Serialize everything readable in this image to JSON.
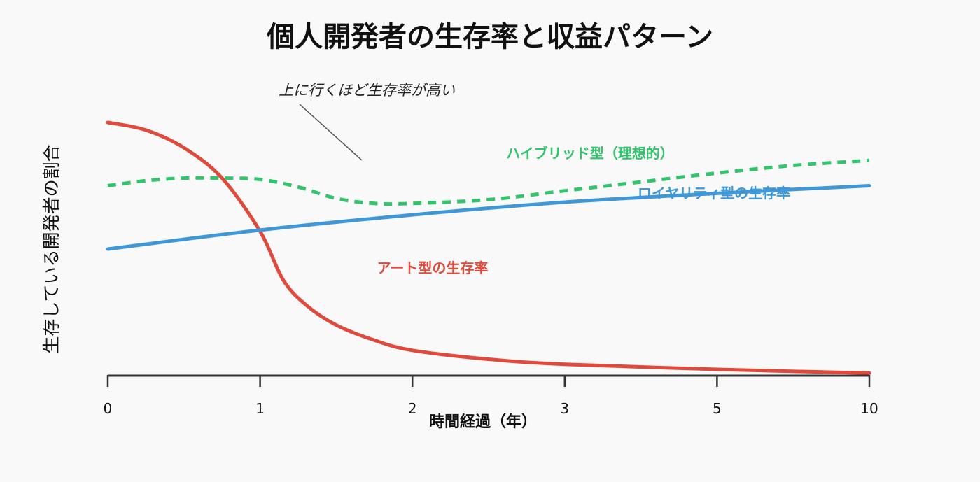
{
  "chart_data": {
    "type": "line",
    "title": "個人開発者の生存率と収益パターン",
    "xlabel": "時間経過（年）",
    "ylabel": "生存している開発者の割合",
    "x_tick_labels": [
      "0",
      "1",
      "2",
      "3",
      "5",
      "10"
    ],
    "ylim": [
      0,
      100
    ],
    "grid": false,
    "y_ticks_shown": false,
    "annotation": {
      "text": "上に行くほど生存率が高い",
      "style": "italic"
    },
    "series": [
      {
        "name": "アート型の生存率",
        "color": "#e04a3c",
        "style": "solid",
        "x_positions": [
          0,
          0.25,
          0.5,
          0.75,
          1,
          1.15,
          1.3,
          1.5,
          1.75,
          2,
          2.5,
          3,
          4,
          5
        ],
        "values": [
          100,
          97,
          90,
          78,
          57,
          38,
          28,
          20,
          14,
          10,
          6.5,
          4.5,
          2.5,
          1
        ]
      },
      {
        "name": "ロイヤリティ型の生存率",
        "color": "#3f97d8",
        "style": "solid",
        "x_positions": [
          0,
          1,
          2,
          3,
          4,
          5
        ],
        "values": [
          50,
          57.5,
          63.5,
          68.5,
          72,
          75
        ]
      },
      {
        "name": "ハイブリッド型（理想的）",
        "color": "#33c36b",
        "style": "dashed",
        "x_positions": [
          0,
          0.25,
          0.5,
          0.75,
          1,
          1.25,
          1.5,
          1.75,
          2,
          2.5,
          3,
          3.5,
          4,
          4.5,
          5
        ],
        "values": [
          75,
          77,
          78,
          78,
          77.5,
          74.5,
          70,
          68,
          68,
          69.5,
          73,
          76.5,
          80,
          83,
          85
        ]
      }
    ]
  },
  "colors": {
    "background": "#f9f9f9",
    "axis": "#333333",
    "text": "#111111",
    "annotation_line": "#555555"
  }
}
